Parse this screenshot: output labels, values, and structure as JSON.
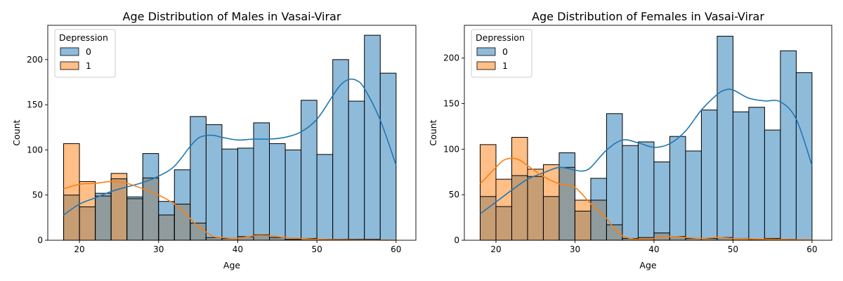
{
  "chart_data": [
    {
      "type": "histogram",
      "title": "Age Distribution of Males in Vasai-Virar",
      "xlabel": "Age",
      "ylabel": "Count",
      "xlim": [
        16,
        62.5
      ],
      "ylim": [
        0,
        238
      ],
      "xticks": [
        20,
        30,
        40,
        50,
        60
      ],
      "yticks": [
        0,
        50,
        100,
        150,
        200
      ],
      "bin_edges": [
        18,
        20,
        22,
        24,
        26,
        28,
        30,
        32,
        34,
        36,
        38,
        40,
        42,
        44,
        46,
        48,
        50,
        52,
        54,
        56,
        58,
        60
      ],
      "legend": {
        "title": "Depression",
        "position": "top-left"
      },
      "series": [
        {
          "name": "0",
          "color": "#1f77b4",
          "counts": [
            50,
            37,
            52,
            68,
            48,
            96,
            43,
            78,
            137,
            128,
            101,
            102,
            130,
            107,
            100,
            155,
            95,
            200,
            154,
            227,
            185
          ]
        },
        {
          "name": "1",
          "color": "#ff7f0e",
          "counts": [
            107,
            65,
            49,
            74,
            46,
            69,
            28,
            40,
            19,
            3,
            2,
            4,
            6,
            3,
            1,
            2,
            1,
            1,
            1,
            1,
            0
          ]
        }
      ],
      "kde": [
        {
          "series": "0",
          "x": [
            18,
            20,
            22,
            24,
            26,
            28,
            30,
            32,
            34,
            35,
            36,
            37,
            38,
            40,
            42,
            44,
            46,
            48,
            50,
            52,
            53,
            54,
            55,
            56,
            58,
            60
          ],
          "y": [
            28,
            40,
            47,
            54,
            59,
            64,
            71,
            82,
            104,
            113,
            116,
            116,
            114,
            111,
            112,
            112,
            114,
            120,
            134,
            160,
            172,
            178,
            177,
            168,
            133,
            83
          ]
        },
        {
          "series": "1",
          "x": [
            18,
            20,
            22,
            24,
            26,
            28,
            30,
            32,
            34,
            35,
            36,
            37,
            38,
            40,
            42,
            44,
            46,
            48,
            50,
            52,
            55,
            60
          ],
          "y": [
            57,
            62,
            63,
            65,
            63,
            57,
            50,
            40,
            24,
            15,
            9,
            4,
            3,
            2,
            5,
            5,
            3,
            2,
            1,
            0.5,
            0.3,
            0.1
          ]
        }
      ]
    },
    {
      "type": "histogram",
      "title": "Age Distribution of Females in Vasai-Virar",
      "xlabel": "Age",
      "ylabel": "Count",
      "xlim": [
        16,
        62.5
      ],
      "ylim": [
        0,
        236
      ],
      "xticks": [
        20,
        30,
        40,
        50,
        60
      ],
      "yticks": [
        0,
        50,
        100,
        150,
        200
      ],
      "bin_edges": [
        18,
        20,
        22,
        24,
        26,
        28,
        30,
        32,
        34,
        36,
        38,
        40,
        42,
        44,
        46,
        48,
        50,
        52,
        54,
        56,
        58,
        60
      ],
      "legend": {
        "title": "Depression",
        "position": "top-left"
      },
      "series": [
        {
          "name": "0",
          "color": "#1f77b4",
          "counts": [
            48,
            37,
            71,
            70,
            48,
            96,
            32,
            68,
            139,
            104,
            108,
            86,
            114,
            98,
            143,
            224,
            141,
            146,
            121,
            208,
            184
          ]
        },
        {
          "name": "1",
          "color": "#ff7f0e",
          "counts": [
            105,
            67,
            113,
            78,
            83,
            80,
            44,
            44,
            17,
            2,
            3,
            8,
            4,
            2,
            2,
            3,
            2,
            1,
            2,
            1,
            0
          ]
        }
      ],
      "kde": [
        {
          "series": "0",
          "x": [
            18,
            20,
            22,
            24,
            26,
            28,
            30,
            31,
            32,
            34,
            36,
            38,
            40,
            42,
            44,
            46,
            48,
            49,
            50,
            52,
            54,
            56,
            58,
            60
          ],
          "y": [
            29,
            42,
            55,
            67,
            74,
            80,
            77,
            76,
            80,
            99,
            110,
            107,
            102,
            106,
            120,
            143,
            160,
            165,
            165,
            156,
            153,
            152,
            133,
            82
          ]
        },
        {
          "series": "1",
          "x": [
            18,
            20,
            21,
            22,
            23,
            24,
            26,
            28,
            30,
            32,
            34,
            35,
            36,
            37,
            38,
            40,
            42,
            44,
            46,
            48,
            50,
            55,
            60
          ],
          "y": [
            62,
            80,
            88,
            90,
            88,
            82,
            70,
            62,
            58,
            40,
            24,
            12,
            5,
            2,
            1,
            2,
            4,
            3,
            2,
            3,
            2,
            1,
            0.3
          ]
        }
      ]
    }
  ]
}
